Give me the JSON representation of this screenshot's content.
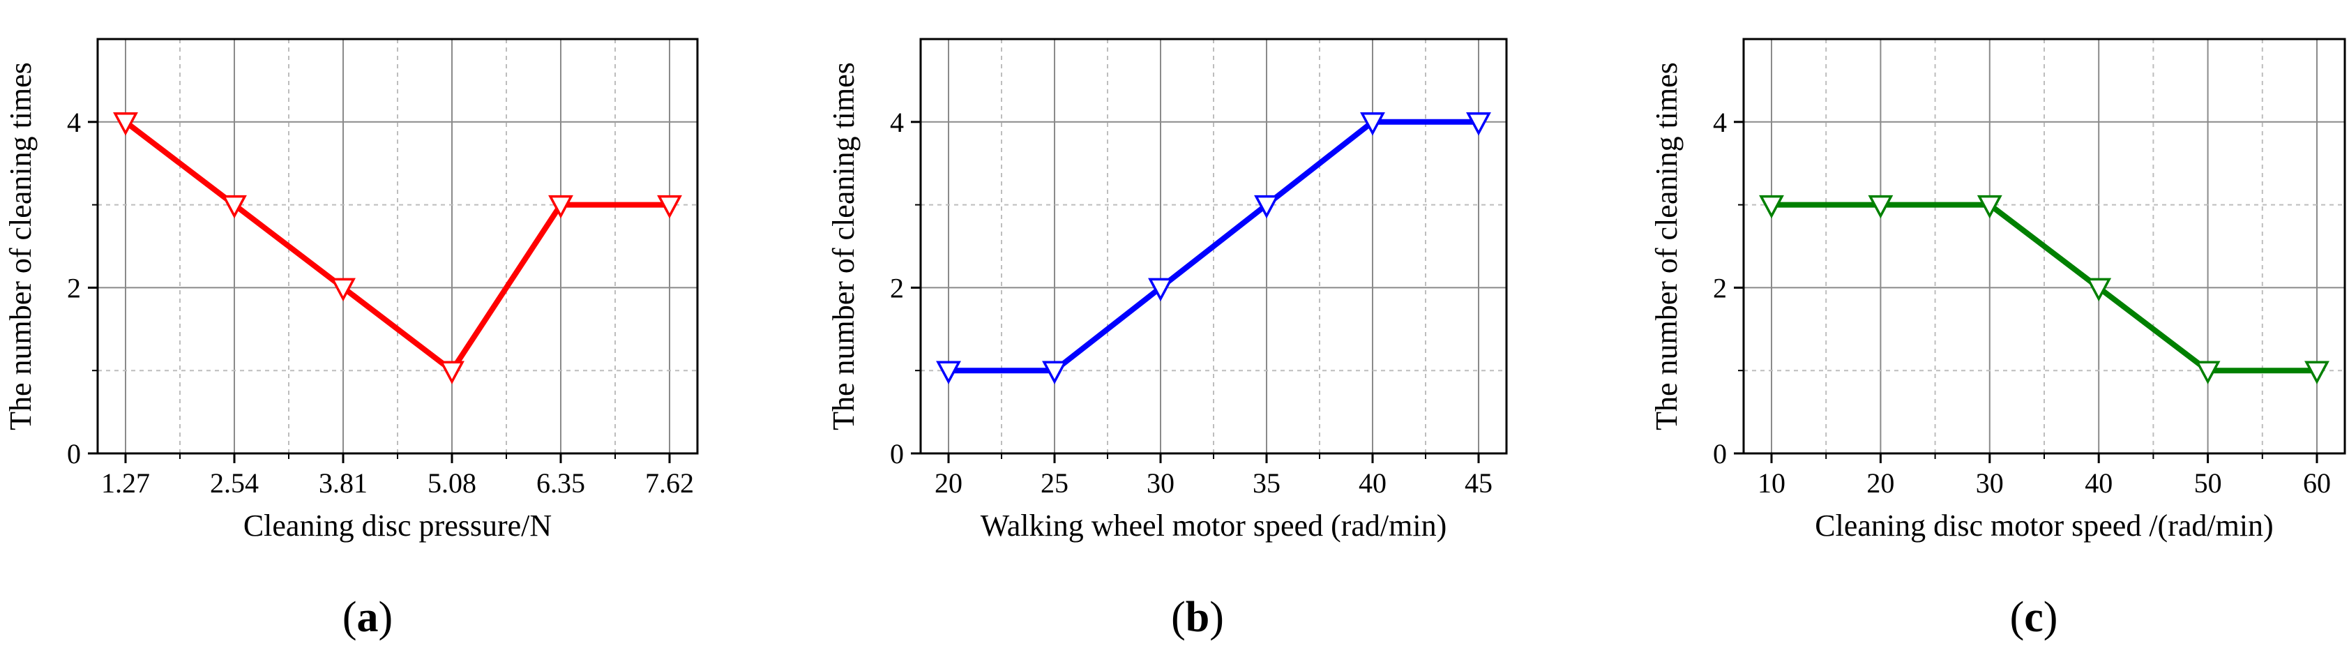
{
  "chart_data": [
    {
      "type": "line",
      "panel": "a",
      "panel_caption": {
        "open": "(",
        "letter": "a",
        "close": ")"
      },
      "title": "",
      "xlabel": "Cleaning disc pressure/N",
      "ylabel": "The number of cleaning times",
      "categories": [
        "1.27",
        "2.54",
        "3.81",
        "5.08",
        "6.35",
        "7.62"
      ],
      "series": [
        {
          "name": "cleaning times",
          "color": "#ff0000",
          "values": [
            4,
            3,
            2,
            1,
            3,
            3
          ]
        }
      ],
      "ylim": [
        0,
        5
      ],
      "yticks": [
        0,
        2,
        4
      ],
      "grid": true,
      "marker": "down-triangle-open"
    },
    {
      "type": "line",
      "panel": "b",
      "panel_caption": {
        "open": "(",
        "letter": "b",
        "close": ")"
      },
      "title": "",
      "xlabel": "Walking wheel motor speed (rad/min)",
      "ylabel": "The number of cleaning times",
      "categories": [
        "20",
        "25",
        "30",
        "35",
        "40",
        "45"
      ],
      "series": [
        {
          "name": "cleaning times",
          "color": "#0000ff",
          "values": [
            1,
            1,
            2,
            3,
            4,
            4
          ]
        }
      ],
      "ylim": [
        0,
        5
      ],
      "yticks": [
        0,
        2,
        4
      ],
      "grid": true,
      "marker": "down-triangle-open"
    },
    {
      "type": "line",
      "panel": "c",
      "panel_caption": {
        "open": "(",
        "letter": "c",
        "close": ")"
      },
      "title": "",
      "xlabel": "Cleaning disc motor speed /(rad/min)",
      "ylabel": "The number of cleaning times",
      "categories": [
        "10",
        "20",
        "30",
        "40",
        "50",
        "60"
      ],
      "series": [
        {
          "name": "cleaning times",
          "color": "#008000",
          "values": [
            3,
            3,
            3,
            2,
            1,
            1
          ]
        }
      ],
      "ylim": [
        0,
        5
      ],
      "yticks": [
        0,
        2,
        4
      ],
      "grid": true,
      "marker": "down-triangle-open"
    }
  ]
}
